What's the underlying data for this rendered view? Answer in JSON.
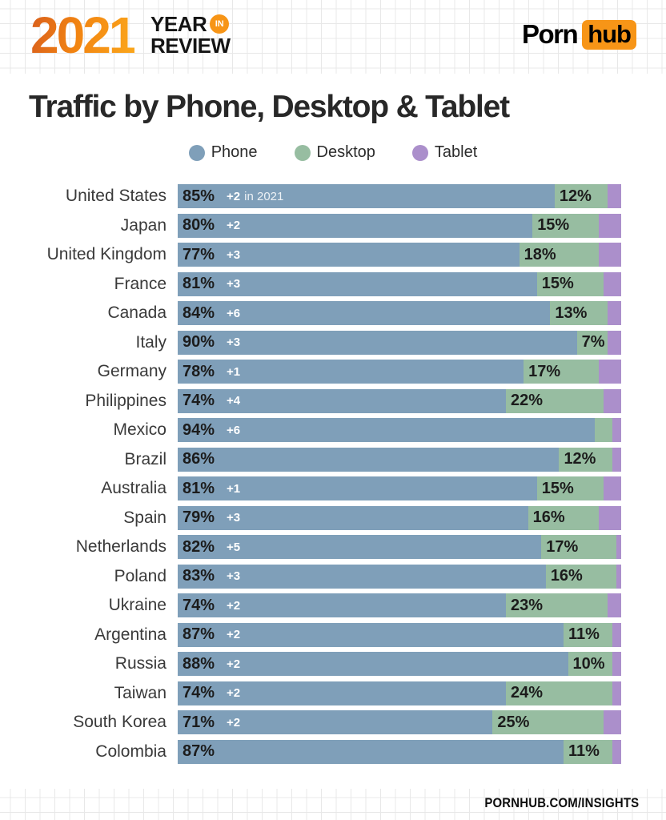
{
  "header": {
    "year": "2021",
    "year_line1": "YEAR",
    "year_badge": "IN",
    "year_line2": "REVIEW",
    "brand_part1": "Porn",
    "brand_part2": "hub"
  },
  "title": "Traffic by Phone, Desktop & Tablet",
  "legend": [
    {
      "label": "Phone",
      "color": "#7f9fb9"
    },
    {
      "label": "Desktop",
      "color": "#97bda1"
    },
    {
      "label": "Tablet",
      "color": "#ab8fcb"
    }
  ],
  "footer": {
    "url": "PORNHUB.COM/INSIGHTS"
  },
  "chart_data": {
    "type": "bar",
    "orientation": "horizontal",
    "stacked": true,
    "unit": "percent",
    "title": "Traffic by Phone, Desktop & Tablet",
    "legend_position": "top",
    "axis_range": [
      0,
      100
    ],
    "grid": false,
    "categories": [
      "United States",
      "Japan",
      "United Kingdom",
      "France",
      "Canada",
      "Italy",
      "Germany",
      "Philippines",
      "Mexico",
      "Brazil",
      "Australia",
      "Spain",
      "Netherlands",
      "Poland",
      "Ukraine",
      "Argentina",
      "Russia",
      "Taiwan",
      "South Korea",
      "Colombia"
    ],
    "series": [
      {
        "name": "Phone",
        "color": "#7f9fb9",
        "values": [
          85,
          80,
          77,
          81,
          84,
          90,
          78,
          74,
          94,
          86,
          81,
          79,
          82,
          83,
          74,
          87,
          88,
          74,
          71,
          87
        ]
      },
      {
        "name": "Desktop",
        "color": "#97bda1",
        "values": [
          12,
          15,
          18,
          15,
          13,
          7,
          17,
          22,
          4,
          12,
          15,
          16,
          17,
          16,
          23,
          11,
          10,
          24,
          25,
          11
        ]
      },
      {
        "name": "Tablet",
        "color": "#ab8fcb",
        "values": [
          3,
          5,
          5,
          4,
          3,
          3,
          5,
          4,
          2,
          2,
          4,
          5,
          1,
          1,
          3,
          2,
          2,
          2,
          4,
          2
        ]
      }
    ],
    "bar_labels": {
      "phone": [
        "85%",
        "80%",
        "77%",
        "81%",
        "84%",
        "90%",
        "78%",
        "74%",
        "94%",
        "86%",
        "81%",
        "79%",
        "82%",
        "83%",
        "74%",
        "87%",
        "88%",
        "74%",
        "71%",
        "87%"
      ],
      "change": [
        "+2",
        "+2",
        "+3",
        "+3",
        "+6",
        "+3",
        "+1",
        "+4",
        "+6",
        "",
        "+1",
        "+3",
        "+5",
        "+3",
        "+2",
        "+2",
        "+2",
        "+2",
        "+2",
        ""
      ],
      "change_suffix": [
        "in 2021",
        "",
        "",
        "",
        "",
        "",
        "",
        "",
        "",
        "",
        "",
        "",
        "",
        "",
        "",
        "",
        "",
        "",
        "",
        ""
      ],
      "desktop": [
        "12%",
        "15%",
        "18%",
        "15%",
        "13%",
        "7%",
        "17%",
        "22%",
        "",
        "12%",
        "15%",
        "16%",
        "17%",
        "16%",
        "23%",
        "11%",
        "10%",
        "24%",
        "25%",
        "11%"
      ]
    }
  }
}
